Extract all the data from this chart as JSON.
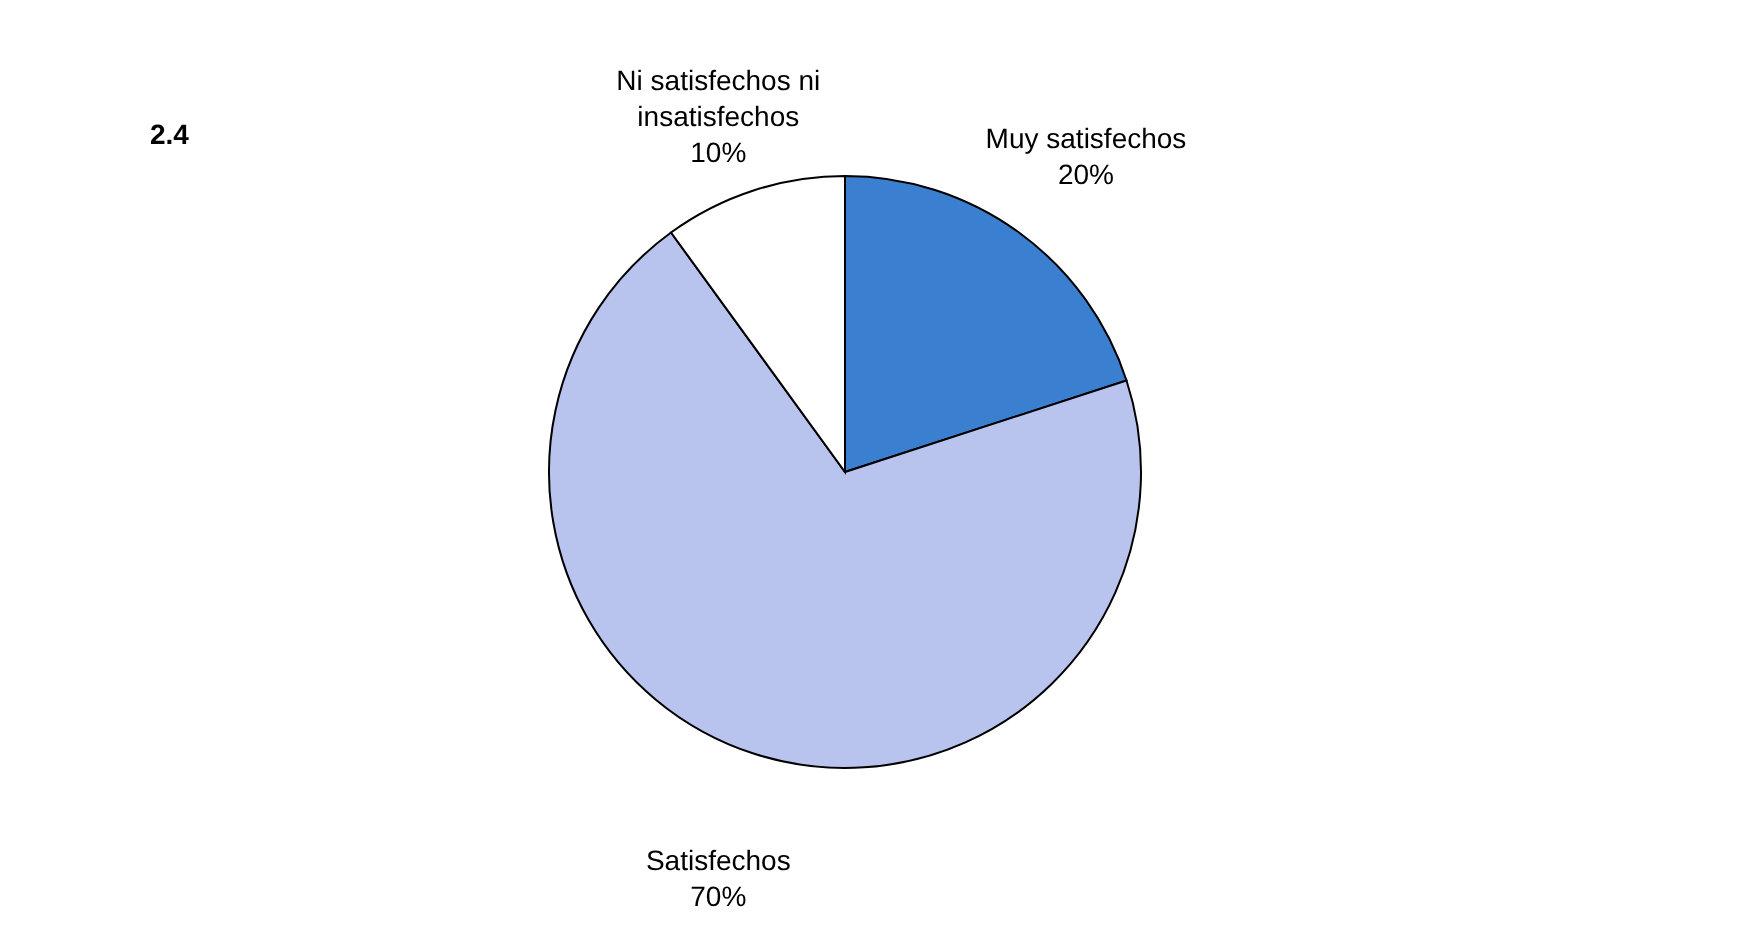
{
  "chart_data": {
    "type": "pie",
    "title": "2.4",
    "categories": [
      "Muy satisfechos",
      "Satisfechos",
      "Ni satisfechos ni insatisfechos"
    ],
    "values": [
      20,
      70,
      10
    ],
    "value_labels": [
      "20%",
      "70%",
      "10%"
    ],
    "colors": [
      "#3a7fd0",
      "#b8c4ee",
      "#ffffff"
    ],
    "legend": false
  }
}
